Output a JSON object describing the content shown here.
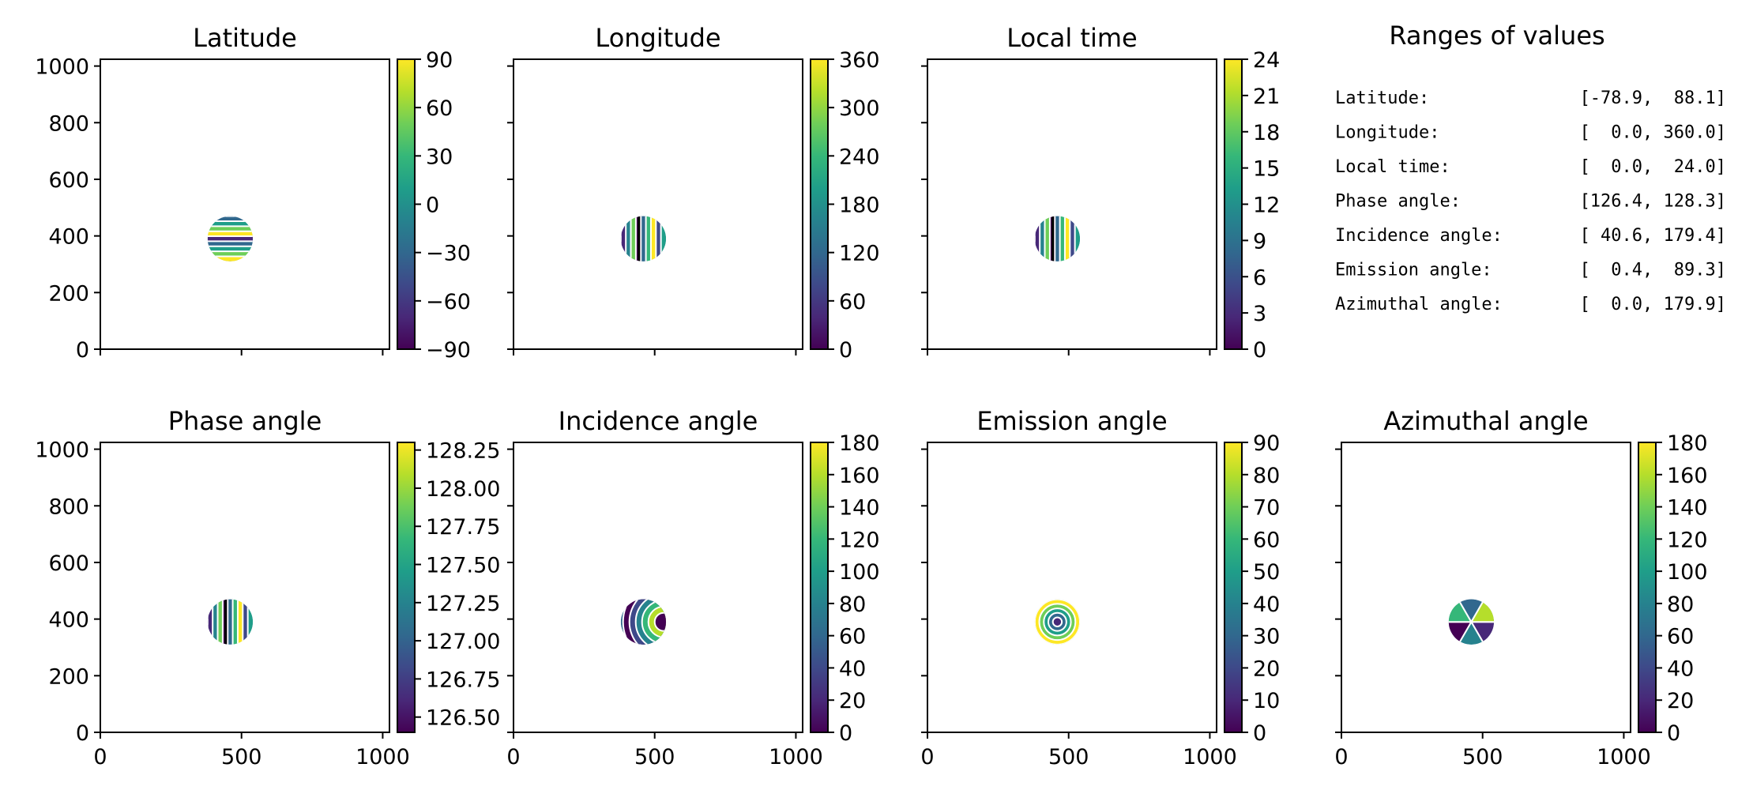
{
  "chart_data": [
    {
      "type": "heatmap",
      "title": "Latitude",
      "xlim": [
        0,
        1024
      ],
      "ylim": [
        0,
        1024
      ],
      "xticks": [],
      "yticks": [
        0,
        200,
        400,
        600,
        800,
        1000
      ],
      "colorbar": {
        "ticks": [
          "−90",
          "−60",
          "−30",
          "0",
          "30",
          "60",
          "90"
        ],
        "range": [
          -90,
          90
        ]
      },
      "disk": {
        "cx": 460,
        "cy": 390,
        "r": 80
      },
      "stripes": "horizontal"
    },
    {
      "type": "heatmap",
      "title": "Longitude",
      "xlim": [
        0,
        1024
      ],
      "ylim": [
        0,
        1024
      ],
      "xticks": [],
      "yticks": [],
      "colorbar": {
        "ticks": [
          "0",
          "60",
          "120",
          "180",
          "240",
          "300",
          "360"
        ],
        "range": [
          0,
          360
        ]
      },
      "disk": {
        "cx": 460,
        "cy": 390,
        "r": 80
      },
      "stripes": "vertical"
    },
    {
      "type": "heatmap",
      "title": "Local time",
      "xlim": [
        0,
        1024
      ],
      "ylim": [
        0,
        1024
      ],
      "xticks": [],
      "yticks": [],
      "colorbar": {
        "ticks": [
          "0",
          "3",
          "6",
          "9",
          "12",
          "15",
          "18",
          "21",
          "24"
        ],
        "range": [
          0,
          24
        ]
      },
      "disk": {
        "cx": 460,
        "cy": 390,
        "r": 80
      },
      "stripes": "vertical"
    },
    {
      "type": "heatmap",
      "title": "Phase angle",
      "xlim": [
        0,
        1024
      ],
      "ylim": [
        0,
        1024
      ],
      "xticks": [
        0,
        500,
        1000
      ],
      "yticks": [
        0,
        200,
        400,
        600,
        800,
        1000
      ],
      "colorbar": {
        "ticks": [
          "126.50",
          "126.75",
          "127.00",
          "127.25",
          "127.50",
          "127.75",
          "128.00",
          "128.25"
        ],
        "range": [
          126.4,
          128.3
        ]
      },
      "disk": {
        "cx": 460,
        "cy": 390,
        "r": 80
      },
      "stripes": "vertical"
    },
    {
      "type": "heatmap",
      "title": "Incidence angle",
      "xlim": [
        0,
        1024
      ],
      "ylim": [
        0,
        1024
      ],
      "xticks": [
        0,
        500,
        1000
      ],
      "yticks": [],
      "colorbar": {
        "ticks": [
          "0",
          "20",
          "40",
          "60",
          "80",
          "100",
          "120",
          "140",
          "160",
          "180"
        ],
        "range": [
          0,
          180
        ]
      },
      "disk": {
        "cx": 460,
        "cy": 390,
        "r": 80
      },
      "stripes": "arcs"
    },
    {
      "type": "heatmap",
      "title": "Emission angle",
      "xlim": [
        0,
        1024
      ],
      "ylim": [
        0,
        1024
      ],
      "xticks": [
        0,
        500,
        1000
      ],
      "yticks": [],
      "colorbar": {
        "ticks": [
          "0",
          "10",
          "20",
          "30",
          "40",
          "50",
          "60",
          "70",
          "80",
          "90"
        ],
        "range": [
          0,
          90
        ]
      },
      "disk": {
        "cx": 460,
        "cy": 390,
        "r": 80
      },
      "stripes": "rings"
    },
    {
      "type": "heatmap",
      "title": "Azimuthal angle",
      "xlim": [
        0,
        1024
      ],
      "ylim": [
        0,
        1024
      ],
      "xticks": [
        0,
        500,
        1000
      ],
      "yticks": [],
      "colorbar": {
        "ticks": [
          "0",
          "20",
          "40",
          "60",
          "80",
          "100",
          "120",
          "140",
          "160",
          "180"
        ],
        "range": [
          0,
          180
        ]
      },
      "disk": {
        "cx": 460,
        "cy": 390,
        "r": 80
      },
      "stripes": "wedges"
    }
  ],
  "ranges_panel": {
    "title": "Ranges of values",
    "rows": [
      {
        "label": "Latitude:",
        "value": "[-78.9,  88.1]"
      },
      {
        "label": "Longitude:",
        "value": "[  0.0, 360.0]"
      },
      {
        "label": "Local time:",
        "value": "[  0.0,  24.0]"
      },
      {
        "label": "Phase angle:",
        "value": "[126.4, 128.3]"
      },
      {
        "label": "Incidence angle:",
        "value": "[ 40.6, 179.4]"
      },
      {
        "label": "Emission angle:",
        "value": "[  0.4,  89.3]"
      },
      {
        "label": "Azimuthal angle:",
        "value": "[  0.0, 179.9]"
      }
    ]
  },
  "colors": {
    "colormap": [
      "#440154",
      "#482878",
      "#3e4989",
      "#31688e",
      "#26828e",
      "#1f9e89",
      "#35b779",
      "#6ece58",
      "#b5de2b",
      "#fde725"
    ],
    "frame": "#000000"
  }
}
